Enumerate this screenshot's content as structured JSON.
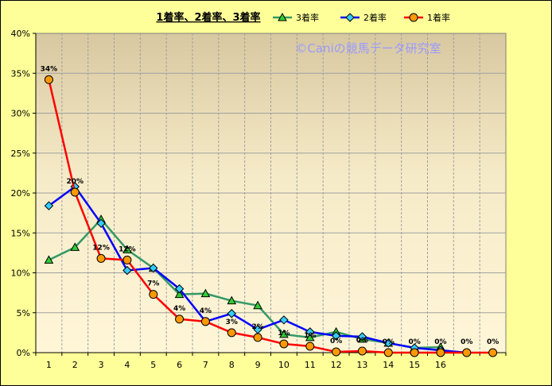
{
  "chart_data": {
    "type": "line",
    "title": "1着率、2着率、3着率",
    "watermark": "©Caniの競馬データ研究室",
    "xlabel": "",
    "ylabel": "",
    "x": [
      1,
      2,
      3,
      4,
      5,
      6,
      7,
      8,
      9,
      10,
      11,
      12,
      13,
      14,
      15,
      16,
      17,
      18
    ],
    "x_tick_labels": [
      "1",
      "2",
      "3",
      "4",
      "5",
      "6",
      "7",
      "8",
      "9",
      "10",
      "11",
      "12",
      "13",
      "14",
      "15",
      "16"
    ],
    "y_tick_labels": [
      "0%",
      "5%",
      "10%",
      "15%",
      "20%",
      "25%",
      "30%",
      "35%",
      "40%"
    ],
    "ylim": [
      0,
      40
    ],
    "grid": true,
    "legend_position": "top",
    "series": [
      {
        "name": "3着率",
        "color": "#339966",
        "marker": "triangle",
        "marker_color": "#33CC33",
        "values": [
          11.6,
          13.2,
          16.7,
          12.9,
          10.6,
          7.3,
          7.4,
          6.5,
          5.9,
          2.3,
          1.9,
          2.6,
          1.7,
          1.2,
          0.6,
          0.7,
          null,
          null
        ]
      },
      {
        "name": "2着率",
        "color": "#0000FF",
        "marker": "diamond",
        "marker_color": "#33CCFF",
        "values": [
          18.4,
          20.8,
          16.2,
          10.3,
          10.6,
          8.0,
          3.9,
          4.9,
          2.9,
          4.1,
          2.6,
          2.1,
          2.0,
          1.2,
          0.6,
          0.3,
          0.0,
          null
        ]
      },
      {
        "name": "1着率",
        "color": "#FF0000",
        "marker": "circle",
        "marker_color": "#FF9900",
        "values": [
          34.2,
          20.1,
          11.8,
          11.6,
          7.3,
          4.2,
          3.9,
          2.5,
          1.9,
          1.1,
          0.8,
          0.1,
          0.2,
          0.0,
          0.0,
          0.0,
          0.0,
          0.0
        ]
      }
    ],
    "data_labels": [
      {
        "series": "1着率",
        "index": 0,
        "text": "34%"
      },
      {
        "series": "1着率",
        "index": 1,
        "text": "20%"
      },
      {
        "series": "1着率",
        "index": 2,
        "text": "12%"
      },
      {
        "series": "1着率",
        "index": 3,
        "text": "12%"
      },
      {
        "series": "1着率",
        "index": 4,
        "text": "7%"
      },
      {
        "series": "1着率",
        "index": 5,
        "text": "4%"
      },
      {
        "series": "1着率",
        "index": 6,
        "text": "4%"
      },
      {
        "series": "1着率",
        "index": 7,
        "text": "3%"
      },
      {
        "series": "1着率",
        "index": 8,
        "text": "2%"
      },
      {
        "series": "1着率",
        "index": 9,
        "text": "1%"
      },
      {
        "series": "1着率",
        "index": 10,
        "text": "1%"
      },
      {
        "series": "1着率",
        "index": 11,
        "text": "0%"
      },
      {
        "series": "1着率",
        "index": 12,
        "text": "0%"
      },
      {
        "series": "1着率",
        "index": 13,
        "text": "0%"
      },
      {
        "series": "1着率",
        "index": 14,
        "text": "0%"
      },
      {
        "series": "1着率",
        "index": 15,
        "text": "0%"
      },
      {
        "series": "1着率",
        "index": 16,
        "text": "0%"
      },
      {
        "series": "1着率",
        "index": 17,
        "text": "0%"
      }
    ]
  }
}
